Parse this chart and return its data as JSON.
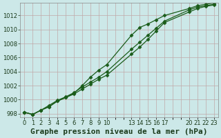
{
  "background_color": "#cce8e8",
  "grid_color": "#c0a8a8",
  "line_color": "#1a5c1a",
  "title": "Graphe pression niveau de la mer (hPa)",
  "xlim": [
    -0.5,
    23.5
  ],
  "ylim": [
    997.5,
    1013.8
  ],
  "yticks": [
    998,
    1000,
    1002,
    1004,
    1006,
    1008,
    1010,
    1012
  ],
  "xticks": [
    0,
    1,
    2,
    3,
    4,
    5,
    6,
    7,
    8,
    9,
    10,
    13,
    14,
    15,
    16,
    17,
    20,
    21,
    22,
    23
  ],
  "line1_x": [
    0,
    1,
    2,
    3,
    4,
    5,
    6,
    7,
    8,
    9,
    10,
    13,
    14,
    15,
    16,
    17,
    20,
    21,
    22,
    23
  ],
  "line1_y": [
    998.2,
    997.9,
    998.5,
    999.2,
    999.9,
    1000.4,
    1001.0,
    1001.8,
    1002.5,
    1003.2,
    1004.0,
    1007.2,
    1008.2,
    1009.2,
    1010.2,
    1011.2,
    1012.8,
    1013.2,
    1013.4,
    1013.6
  ],
  "line2_x": [
    0,
    1,
    2,
    3,
    4,
    5,
    6,
    7,
    8,
    9,
    10,
    13,
    14,
    15,
    16,
    17,
    20,
    21,
    22,
    23
  ],
  "line2_y": [
    998.2,
    997.9,
    998.5,
    999.0,
    999.8,
    1000.3,
    1000.9,
    1002.0,
    1003.2,
    1004.2,
    1005.0,
    1009.2,
    1010.3,
    1010.8,
    1011.4,
    1012.0,
    1013.0,
    1013.4,
    1013.6,
    1013.8
  ],
  "line3_x": [
    0,
    1,
    2,
    3,
    4,
    5,
    6,
    7,
    8,
    9,
    10,
    13,
    14,
    15,
    16,
    17,
    20,
    21,
    22,
    23
  ],
  "line3_y": [
    998.2,
    997.9,
    998.5,
    999.0,
    999.8,
    1000.3,
    1000.8,
    1001.5,
    1002.2,
    1002.9,
    1003.5,
    1006.5,
    1007.5,
    1008.6,
    1009.8,
    1011.0,
    1012.5,
    1013.0,
    1013.3,
    1013.5
  ],
  "title_fontsize": 8,
  "tick_fontsize": 6,
  "marker": "D",
  "markersize": 2.5,
  "linewidth": 0.9
}
